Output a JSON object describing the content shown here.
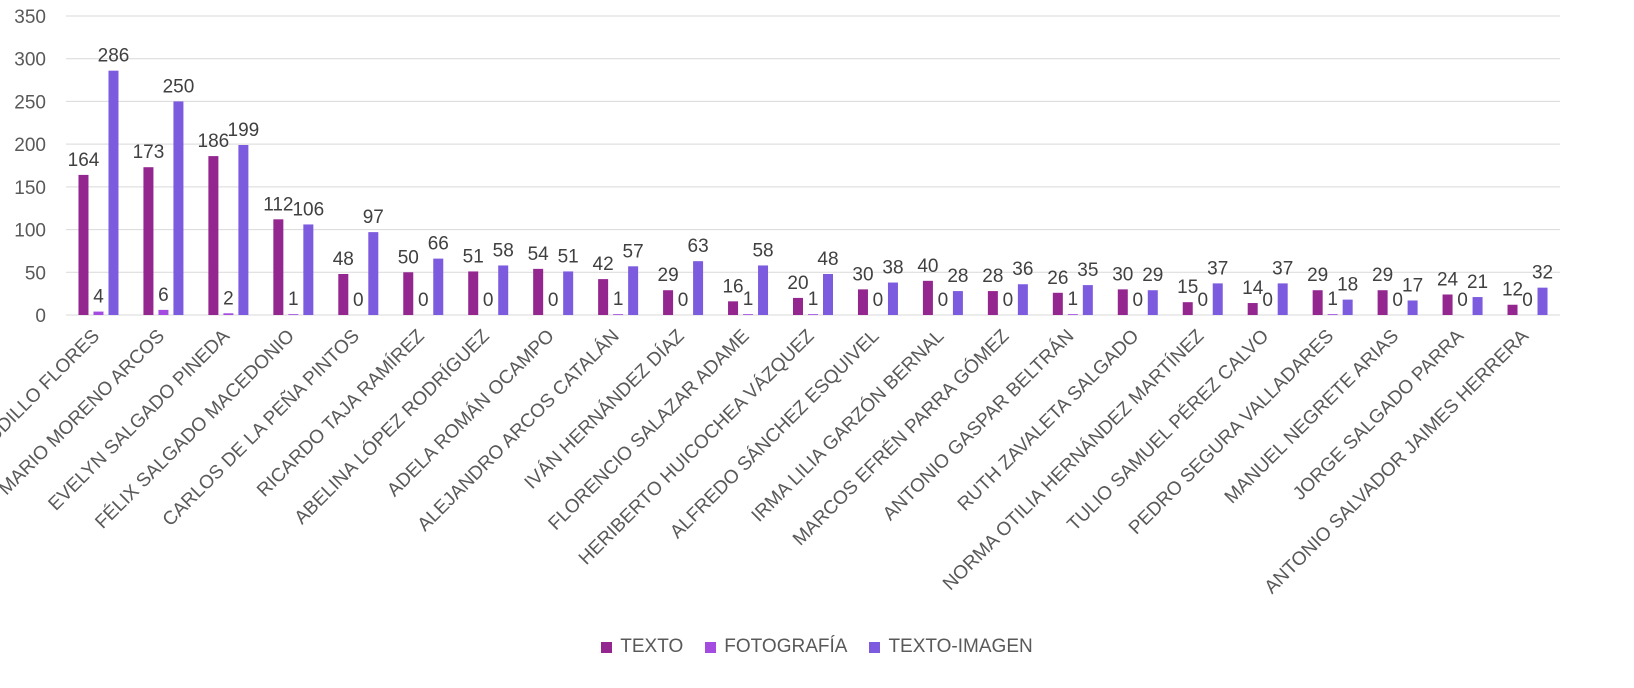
{
  "chart_data": {
    "type": "bar",
    "title": "",
    "xlabel": "",
    "ylabel": "",
    "ylim": [
      0,
      350
    ],
    "yticks": [
      0,
      50,
      100,
      150,
      200,
      250,
      300,
      350
    ],
    "grid": true,
    "legend_position": "bottom",
    "categories": [
      "CLAUDIO CAUDILLO FLORES",
      "MARIO MORENO ARCOS",
      "EVELYN SALGADO PINEDA",
      "FÉLIX SALGADO MACEDONIO",
      "CARLOS DE LA PEÑA PINTOS",
      "RICARDO TAJA RAMÍREZ",
      "ABELINA LÓPEZ RODRÍGUEZ",
      "ADELA ROMÁN OCAMPO",
      "ALEJANDRO ARCOS CATALÁN",
      "IVÁN HERNÁNDEZ DÍAZ",
      "FLORENCIO SALAZAR ADAME",
      "HERIBERTO HUICOCHEA VÁZQUEZ",
      "ALFREDO SÁNCHEZ ESQUIVEL",
      "IRMA LILIA GARZÓN BERNAL",
      "MARCOS EFRÉN PARRA GÓMEZ",
      "ANTONIO GASPAR BELTRÁN",
      "RUTH ZAVALETA SALGADO",
      "NORMA OTILIA HERNÁNDEZ MARTÍNEZ",
      "TULIO SAMUEL PÉREZ CALVO",
      "PEDRO SEGURA VALLADARES",
      "MANUEL NEGRETE ARIAS",
      "JORGE SALGADO PARRA",
      "ANTONIO SALVADOR JAIMES HERRERA"
    ],
    "series": [
      {
        "name": "TEXTO",
        "color": "#93268F",
        "values": [
          164,
          173,
          186,
          112,
          48,
          50,
          51,
          54,
          42,
          29,
          16,
          20,
          30,
          40,
          28,
          26,
          30,
          15,
          14,
          29,
          29,
          24,
          12
        ]
      },
      {
        "name": "FOTOGRAFÍA",
        "color": "#A44CE0",
        "values": [
          4,
          6,
          2,
          1,
          0,
          0,
          0,
          0,
          1,
          0,
          1,
          1,
          0,
          0,
          0,
          1,
          0,
          0,
          0,
          1,
          0,
          0,
          0
        ]
      },
      {
        "name": "TEXTO-IMAGEN",
        "color": "#7C5BDF",
        "values": [
          286,
          250,
          199,
          106,
          97,
          66,
          58,
          51,
          57,
          63,
          58,
          48,
          38,
          28,
          36,
          35,
          29,
          37,
          37,
          18,
          17,
          21,
          32
        ]
      }
    ]
  }
}
